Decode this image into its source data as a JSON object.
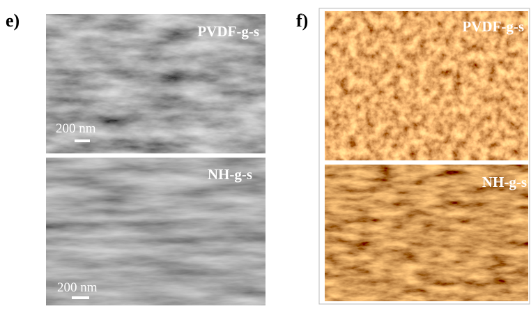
{
  "panels": [
    {
      "label": "e)",
      "images": [
        {
          "caption": "PVDF-g-s",
          "scale_bar": "200 nm"
        },
        {
          "caption": "NH-g-s",
          "scale_bar": "200 nm"
        }
      ]
    },
    {
      "label": "f)",
      "images": [
        {
          "caption": "PVDF-g-s"
        },
        {
          "caption": "NH-g-s"
        }
      ]
    }
  ]
}
